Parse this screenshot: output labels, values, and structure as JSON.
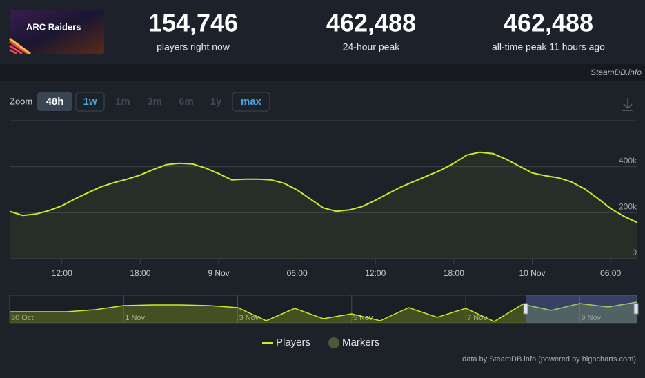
{
  "header": {
    "thumbnail": "ARC Raiders",
    "stats": [
      {
        "value": "154,746",
        "label": "players right now"
      },
      {
        "value": "462,488",
        "label": "24-hour peak"
      },
      {
        "value": "462,488",
        "label": "all-time peak 11 hours ago"
      }
    ],
    "source": "SteamDB.info"
  },
  "zoom": {
    "label": "Zoom",
    "buttons": [
      "48h",
      "1w",
      "1m",
      "3m",
      "6m",
      "1y",
      "max"
    ]
  },
  "chart_data": {
    "type": "line",
    "categories": [
      null,
      null,
      null,
      null,
      "12:00",
      null,
      null,
      null,
      null,
      null,
      "18:00",
      null,
      null,
      null,
      null,
      null,
      "9 Nov",
      null,
      null,
      null,
      null,
      null,
      "06:00",
      null,
      null,
      null,
      null,
      null,
      "12:00",
      null,
      null,
      null,
      null,
      null,
      "18:00",
      null,
      null,
      null,
      null,
      null,
      "10 Nov",
      null,
      null,
      null,
      null,
      null,
      "06:00",
      null,
      null
    ],
    "series": [
      {
        "name": "Players",
        "color": "#c8ec2a",
        "values": [
          206000,
          188000,
          194000,
          209000,
          230000,
          260000,
          287000,
          313000,
          331000,
          346000,
          364000,
          388000,
          409000,
          415000,
          412000,
          394000,
          370000,
          343000,
          346000,
          346000,
          343000,
          328000,
          299000,
          260000,
          221000,
          206000,
          212000,
          227000,
          254000,
          284000,
          313000,
          337000,
          361000,
          385000,
          415000,
          451000,
          463000,
          457000,
          433000,
          403000,
          373000,
          361000,
          352000,
          334000,
          304000,
          263000,
          218000,
          185000,
          158000
        ]
      }
    ],
    "markers": {
      "name": "Markers",
      "color": "#4b5a36"
    },
    "ylim": [
      0,
      600000
    ],
    "yticks": [
      {
        "value": 0,
        "label": "0"
      },
      {
        "value": 200000,
        "label": "200k"
      },
      {
        "value": 400000,
        "label": "400k"
      }
    ],
    "grid": true,
    "navigator": {
      "categories": [
        "30 Oct",
        null,
        null,
        null,
        "1 Nov",
        null,
        null,
        null,
        "3 Nov",
        null,
        null,
        null,
        "5 Nov",
        null,
        null,
        null,
        "7 Nov",
        null,
        null,
        null,
        "9 Nov",
        null,
        null
      ],
      "values": [
        198000,
        198000,
        198000,
        235000,
        309000,
        322000,
        322000,
        309000,
        272000,
        37000,
        260000,
        74000,
        161000,
        37000,
        272000,
        99000,
        260000,
        25000,
        334000,
        223000,
        346000,
        284000,
        371000
      ],
      "ylim": [
        0,
        470000
      ]
    },
    "credits": "data by SteamDB.info (powered by highcharts.com)"
  }
}
